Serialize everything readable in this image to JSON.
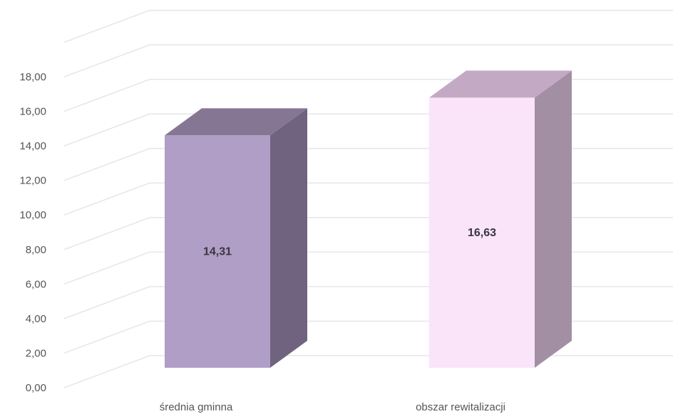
{
  "chart_data": {
    "type": "bar",
    "style": "3d-column",
    "categories": [
      "średnia gminna",
      "obszar rewitalizacji"
    ],
    "values": [
      14.31,
      16.63
    ],
    "data_labels": [
      "14,31",
      "16,63"
    ],
    "ylim": [
      0,
      18
    ],
    "ytick_values": [
      0,
      2,
      4,
      6,
      8,
      10,
      12,
      14,
      16,
      18
    ],
    "ytick_labels": [
      "0,00",
      "2,00",
      "4,00",
      "6,00",
      "8,00",
      "10,00",
      "12,00",
      "14,00",
      "16,00",
      "18,00"
    ],
    "grid": true,
    "legend": "none",
    "colors": {
      "bars": [
        {
          "front": "#b09ec6",
          "side": "#6f6380",
          "top": "#857793"
        },
        {
          "front": "#f9e4fa",
          "side": "#a38fa3",
          "top": "#c4a9c5"
        }
      ],
      "grid": "#e6e6e6",
      "tick_text": "#555555",
      "label_text": "#3a3545"
    }
  }
}
